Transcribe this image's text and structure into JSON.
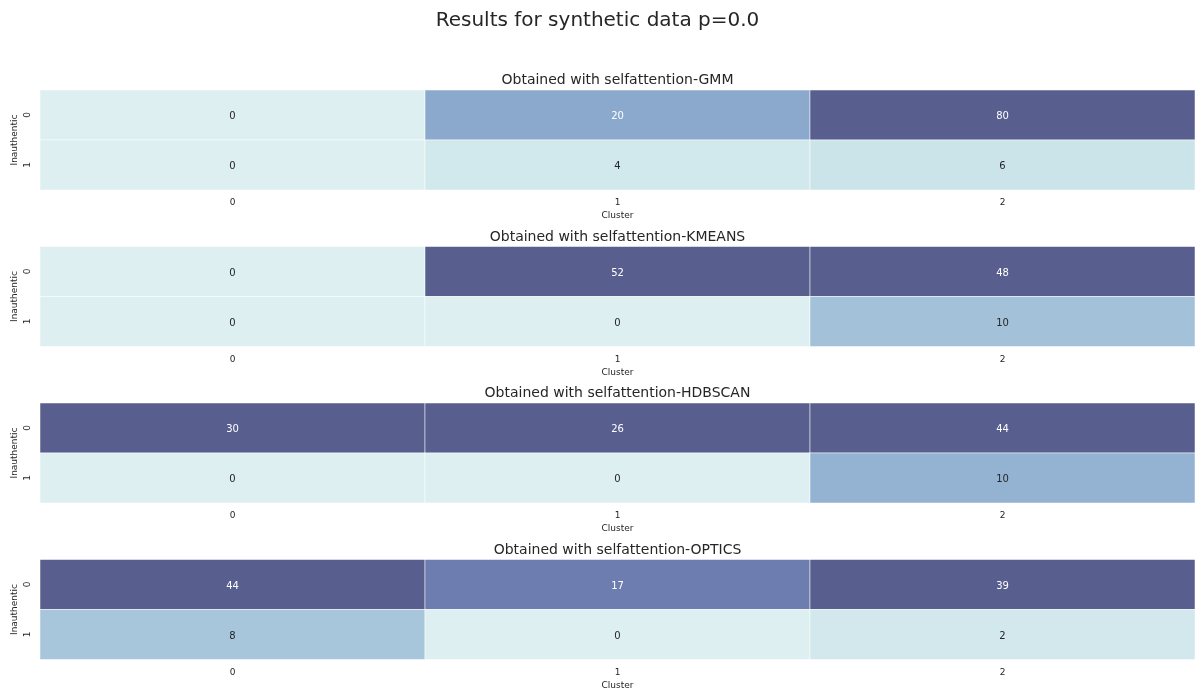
{
  "chart_data": [
    {
      "type": "heatmap",
      "title": "Obtained with selfattention-GMM",
      "annotations": [
        "Results for synthetic data p=0.0"
      ],
      "xlabel": "Cluster",
      "ylabel": "Inauthentic",
      "categories": [
        "0",
        "1",
        "2"
      ],
      "y_categories": [
        "0",
        "1"
      ],
      "cells": [
        [
          0,
          20,
          80
        ],
        [
          0,
          4,
          6
        ]
      ],
      "data_labels": true
    },
    {
      "type": "heatmap",
      "title": "Obtained with selfattention-KMEANS",
      "xlabel": "Cluster",
      "ylabel": "Inauthentic",
      "categories": [
        "0",
        "1",
        "2"
      ],
      "y_categories": [
        "0",
        "1"
      ],
      "cells": [
        [
          0,
          52,
          48
        ],
        [
          0,
          0,
          10
        ]
      ],
      "data_labels": true
    },
    {
      "type": "heatmap",
      "title": "Obtained with selfattention-HDBSCAN",
      "xlabel": "Cluster",
      "ylabel": "Inauthentic",
      "categories": [
        "0",
        "1",
        "2"
      ],
      "y_categories": [
        "0",
        "1"
      ],
      "cells": [
        [
          30,
          26,
          44
        ],
        [
          0,
          0,
          10
        ]
      ],
      "data_labels": true
    },
    {
      "type": "heatmap",
      "title": "Obtained with selfattention-OPTICS",
      "xlabel": "Cluster",
      "ylabel": "Inauthentic",
      "categories": [
        "0",
        "1",
        "2"
      ],
      "y_categories": [
        "0",
        "1"
      ],
      "cells": [
        [
          44,
          17,
          39
        ],
        [
          8,
          0,
          2
        ]
      ],
      "data_labels": true
    }
  ]
}
